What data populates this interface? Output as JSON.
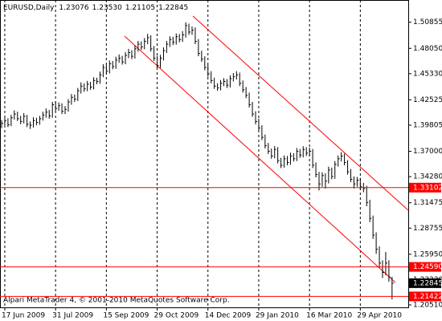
{
  "chart_data": {
    "type": "ohlc",
    "info": {
      "symbol": "EURUSD,Daily",
      "values": [
        1.23076,
        {
          "value": 1.2353,
          "label": "1.23530"
        },
        1.21105,
        1.22845
      ]
    },
    "footer": "Alpari MetaTrader 4, © 2001-2010 MetaQuotes Software Corp.",
    "color": "#000000",
    "grid": true,
    "categories": [
      null,
      "17 Jun 2009",
      null,
      null,
      null,
      null,
      null,
      null,
      null,
      null,
      null,
      null,
      null,
      null,
      null,
      null,
      null,
      "31 Jul 2009",
      null,
      null,
      null,
      null,
      null,
      null,
      null,
      null,
      null,
      null,
      null,
      null,
      null,
      null,
      null,
      "15 Sep 2009",
      null,
      null,
      null,
      null,
      null,
      null,
      null,
      null,
      null,
      null,
      null,
      null,
      null,
      null,
      null,
      "29 Oct 2009",
      null,
      null,
      null,
      null,
      null,
      null,
      null,
      null,
      null,
      null,
      null,
      null,
      null,
      null,
      null,
      "14 Dec 2009",
      null,
      null,
      null,
      null,
      null,
      null,
      null,
      null,
      null,
      null,
      null,
      null,
      null,
      null,
      null,
      "29 Jan 2010",
      null,
      null,
      null,
      null,
      null,
      null,
      null,
      null,
      null,
      null,
      null,
      null,
      null,
      null,
      null,
      "16 Mar 2010",
      null,
      null,
      null,
      null,
      null,
      null,
      null,
      null,
      null,
      null,
      null,
      null,
      null,
      null,
      null,
      "29 Apr 2010",
      null,
      null,
      null,
      null,
      null,
      null,
      null,
      null,
      null,
      null
    ],
    "high": [
      1.4035,
      1.406,
      1.4055,
      1.409,
      1.414,
      1.4125,
      1.408,
      1.411,
      1.409,
      1.402,
      1.4065,
      1.406,
      1.408,
      1.4125,
      1.416,
      1.4145,
      1.423,
      1.4235,
      1.4225,
      1.4215,
      1.4185,
      1.426,
      1.4315,
      1.431,
      1.438,
      1.444,
      1.443,
      1.4455,
      1.4445,
      1.4495,
      1.449,
      1.4555,
      1.4635,
      1.463,
      1.4675,
      1.467,
      1.4715,
      1.474,
      1.4725,
      1.4765,
      1.48,
      1.4785,
      1.4835,
      1.4885,
      1.488,
      1.4915,
      1.496,
      1.4945,
      1.483,
      1.4725,
      1.4735,
      1.4815,
      1.4885,
      1.4935,
      1.493,
      1.4965,
      1.496,
      1.499,
      1.5085,
      1.507,
      1.504,
      1.503,
      1.4905,
      1.478,
      1.472,
      1.463,
      1.456,
      1.449,
      1.443,
      1.4465,
      1.4485,
      1.4475,
      1.4515,
      1.454,
      1.456,
      1.4545,
      1.446,
      1.439,
      1.433,
      1.423,
      1.413,
      1.405,
      1.398,
      1.388,
      1.379,
      1.373,
      1.3755,
      1.3745,
      1.363,
      1.3655,
      1.365,
      1.3685,
      1.368,
      1.3735,
      1.3725,
      1.3755,
      1.3745,
      1.374,
      1.3725,
      1.358,
      1.348,
      1.3475,
      1.3465,
      1.3535,
      1.3525,
      1.3595,
      1.3655,
      1.369,
      1.3675,
      1.3605,
      1.351,
      1.343,
      1.3425,
      1.3415,
      1.336,
      1.333,
      1.318,
      1.301,
      1.283,
      1.268,
      1.253,
      1.262,
      1.253,
      1.2353
    ],
    "low": [
      1.395,
      1.3975,
      1.396,
      1.397,
      1.404,
      1.4025,
      1.399,
      1.4,
      1.396,
      1.394,
      1.3955,
      1.398,
      1.3985,
      1.403,
      1.406,
      1.405,
      1.406,
      1.413,
      1.4135,
      1.41,
      1.41,
      1.4125,
      1.42,
      1.423,
      1.424,
      1.432,
      1.434,
      1.4345,
      1.436,
      1.4365,
      1.442,
      1.4425,
      1.4495,
      1.453,
      1.4535,
      1.458,
      1.4585,
      1.465,
      1.463,
      1.4635,
      1.47,
      1.469,
      1.4695,
      1.477,
      1.479,
      1.4795,
      1.485,
      1.477,
      1.467,
      1.459,
      1.4595,
      1.4675,
      1.4755,
      1.482,
      1.484,
      1.4845,
      1.487,
      1.4875,
      1.492,
      1.495,
      1.495,
      1.485,
      1.472,
      1.466,
      1.457,
      1.45,
      1.443,
      1.437,
      1.435,
      1.4355,
      1.44,
      1.438,
      1.4385,
      1.445,
      1.447,
      1.44,
      1.433,
      1.427,
      1.417,
      1.407,
      1.399,
      1.392,
      1.382,
      1.373,
      1.367,
      1.362,
      1.3625,
      1.357,
      1.352,
      1.3525,
      1.355,
      1.3555,
      1.359,
      1.3595,
      1.363,
      1.3635,
      1.365,
      1.365,
      1.352,
      1.342,
      1.328,
      1.332,
      1.33,
      1.3355,
      1.34,
      1.3405,
      1.3535,
      1.359,
      1.355,
      1.345,
      1.337,
      1.33,
      1.332,
      1.329,
      1.326,
      1.311,
      1.294,
      1.276,
      1.26,
      1.245,
      1.234,
      1.237,
      1.23,
      1.21105
    ],
    "close": [
      1.4,
      1.403,
      1.3985,
      1.406,
      1.41,
      1.405,
      1.402,
      1.4075,
      1.399,
      1.398,
      1.403,
      1.401,
      1.405,
      1.409,
      1.412,
      1.408,
      1.42,
      1.416,
      1.419,
      1.413,
      1.415,
      1.423,
      1.428,
      1.426,
      1.435,
      1.44,
      1.437,
      1.442,
      1.439,
      1.446,
      1.445,
      1.452,
      1.46,
      1.456,
      1.464,
      1.461,
      1.468,
      1.47,
      1.466,
      1.473,
      1.476,
      1.472,
      1.48,
      1.485,
      1.482,
      1.488,
      1.492,
      1.48,
      1.47,
      1.462,
      1.47,
      1.478,
      1.485,
      1.49,
      1.487,
      1.493,
      1.49,
      1.495,
      1.505,
      1.498,
      1.5,
      1.488,
      1.475,
      1.469,
      1.46,
      1.453,
      1.446,
      1.44,
      1.438,
      1.443,
      1.445,
      1.441,
      1.448,
      1.45,
      1.452,
      1.443,
      1.436,
      1.43,
      1.42,
      1.41,
      1.402,
      1.395,
      1.385,
      1.376,
      1.37,
      1.365,
      1.372,
      1.36,
      1.355,
      1.362,
      1.358,
      1.365,
      1.362,
      1.37,
      1.366,
      1.372,
      1.368,
      1.37,
      1.355,
      1.345,
      1.335,
      1.344,
      1.338,
      1.35,
      1.343,
      1.356,
      1.362,
      1.365,
      1.358,
      1.348,
      1.34,
      1.335,
      1.339,
      1.332,
      1.33,
      1.315,
      1.298,
      1.28,
      1.265,
      1.25,
      1.24,
      1.25,
      1.235,
      1.22845
    ],
    "ylim": [
      1.2025,
      1.5324
    ],
    "yticks": [
      1.50855,
      {
        "value": 1.4805,
        "label": "1.48050"
      },
      {
        "value": 1.4533,
        "label": "1.45330"
      },
      1.42525,
      1.39805,
      {
        "value": 1.37,
        "label": "1.37000"
      },
      {
        "value": 1.3428,
        "label": "1.34280"
      },
      1.31475,
      1.28755,
      {
        "value": 1.2595,
        "label": "1.25950"
      },
      {
        "value": 1.2323,
        "label": "1.23230"
      },
      {
        "value": 1.2051,
        "label": "1.20510"
      }
    ],
    "hlines": [
      {
        "value": 1.33102,
        "color": "#ff0000"
      },
      {
        "value": {
          "value": 1.2459,
          "label": "1.24590"
        },
        "color": "#ff0000"
      },
      {
        "value": 1.21422,
        "color": "#ff0000"
      }
    ],
    "current": {
      "value": 1.22845,
      "color": "#000000"
    }
  }
}
